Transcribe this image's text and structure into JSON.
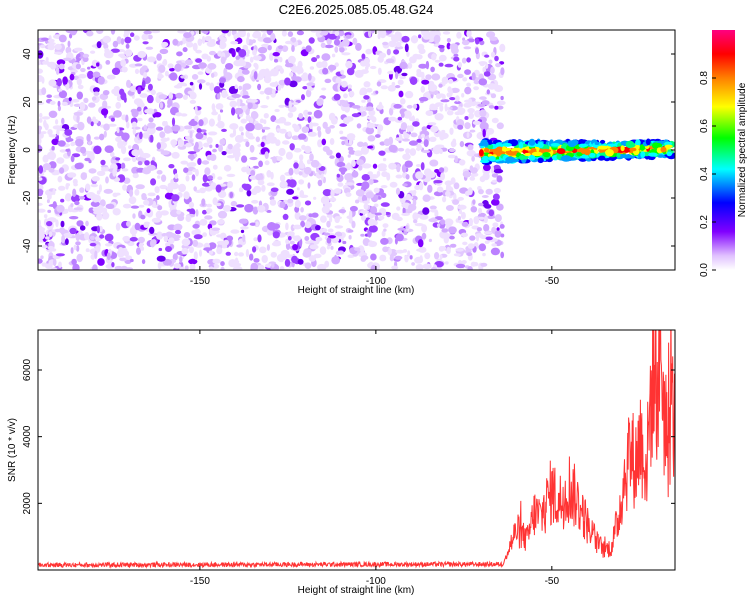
{
  "figure": {
    "title": "C2E6.2025.085.05.48.G24"
  },
  "chart_data": [
    {
      "type": "heatmap",
      "title": "C2E6.2025.085.05.48.G24",
      "xlabel": "Height of straight line (km)",
      "ylabel": "Frequency (Hz)",
      "xlim": [
        -196,
        -15
      ],
      "ylim": [
        -50,
        50
      ],
      "xticks": [
        -150,
        -100,
        -50
      ],
      "yticks": [
        -40,
        -20,
        0,
        20,
        40
      ],
      "grid": false,
      "colorbar": {
        "label": "Normalized spectral amplitude",
        "range": [
          0,
          1
        ],
        "ticks": [
          "0.0",
          "0.2",
          "0.4",
          "0.6",
          "0.8"
        ],
        "colormap": [
          "#ffffff",
          "#8000ff",
          "#0000ff",
          "#00ffff",
          "#00ff00",
          "#ffff00",
          "#ff8000",
          "#ff0000",
          "#ff0080"
        ]
      },
      "regions": [
        {
          "name": "noise",
          "x_range": [
            -196,
            -64
          ],
          "y_range": [
            -50,
            50
          ],
          "amplitude": "low, scattered",
          "color": "#8000ff"
        },
        {
          "name": "signal",
          "x_range": [
            -70,
            -16
          ],
          "center_freq_start": -1,
          "center_freq_end": 0.5,
          "amplitude": "high",
          "color": "#ff0000"
        }
      ]
    },
    {
      "type": "line",
      "xlabel": "Height of straight line (km)",
      "ylabel": "SNR (10 * v/v)",
      "xlim": [
        -196,
        -15
      ],
      "ylim": [
        0,
        7200
      ],
      "xticks": [
        -150,
        -100,
        -50
      ],
      "yticks": [
        2000,
        4000,
        6000
      ],
      "grid": false,
      "series": [
        {
          "color": "#ff3333",
          "x": [
            -196,
            -150,
            -100,
            -64,
            -62,
            -60,
            -57,
            -55,
            -53,
            -50,
            -48,
            -45,
            -42,
            -40,
            -37,
            -35,
            -33,
            -31,
            -30,
            -28,
            -26,
            -25,
            -23,
            -22,
            -21,
            -20,
            -19,
            -18,
            -17,
            -16,
            -15
          ],
          "y": [
            150,
            160,
            170,
            170,
            700,
            1200,
            900,
            1700,
            1600,
            2400,
            2000,
            2500,
            1900,
            1400,
            800,
            600,
            700,
            1600,
            2400,
            3500,
            3200,
            4000,
            3100,
            5000,
            6200,
            5600,
            6900,
            4500,
            3600,
            5000,
            4200
          ]
        }
      ]
    }
  ]
}
